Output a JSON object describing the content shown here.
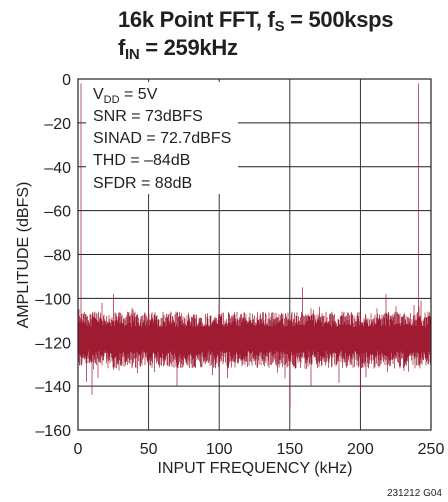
{
  "chart_data": {
    "type": "line",
    "title_main": "16k Point FFT, f",
    "title_sub1": "S",
    "title_mid": " = 500ksps",
    "title_line2_main": "f",
    "title_line2_sub": "IN",
    "title_line2_rest": " = 259kHz",
    "xlabel": "INPUT FREQUENCY (kHz)",
    "ylabel": "AMPLITUDE (dBFS)",
    "xlim": [
      0,
      250
    ],
    "ylim": [
      -160,
      0
    ],
    "xticks": [
      0,
      50,
      100,
      150,
      200,
      250
    ],
    "yticks": [
      0,
      -20,
      -40,
      -60,
      -80,
      -100,
      -120,
      -140,
      -160
    ],
    "grid": true,
    "series_color": "#9e1b32",
    "noise_floor_mean_dBFS": -117,
    "fundamental": {
      "x": 241,
      "y": -2
    },
    "spurs": [
      {
        "x": 2,
        "y": -2
      },
      {
        "x": 17,
        "y": -102
      },
      {
        "x": 25,
        "y": -98
      },
      {
        "x": 50,
        "y": -104
      },
      {
        "x": 100,
        "y": -103
      },
      {
        "x": 159,
        "y": -95
      },
      {
        "x": 218,
        "y": -98
      },
      {
        "x": 238,
        "y": -103
      },
      {
        "x": 243,
        "y": -101
      }
    ],
    "dips": [
      {
        "x": 6,
        "y": -138
      },
      {
        "x": 10,
        "y": -144
      },
      {
        "x": 70,
        "y": -140
      },
      {
        "x": 150,
        "y": -150
      },
      {
        "x": 165,
        "y": -140
      },
      {
        "x": 200,
        "y": -143
      }
    ],
    "annotations": {
      "vdd_main": "V",
      "vdd_sub": "DD",
      "vdd_rest": " = 5V",
      "snr": "SNR = 73dBFS",
      "sinad": "SINAD = 72.7dBFS",
      "thd": "THD = –84dB",
      "sfdr": "SFDR = 88dB"
    },
    "figure_id": "231212 G04"
  }
}
